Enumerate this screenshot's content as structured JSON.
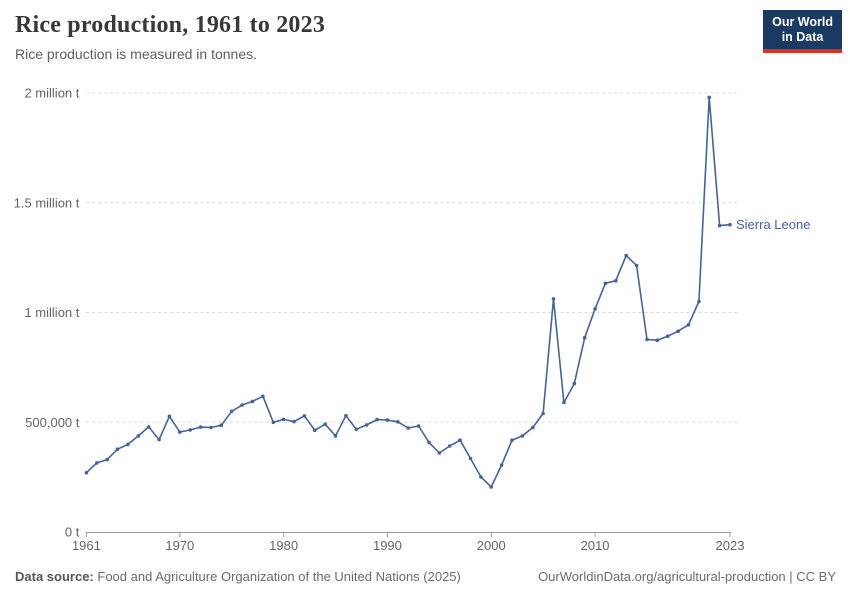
{
  "header": {
    "title": "Rice production, 1961 to 2023",
    "subtitle": "Rice production is measured in tonnes.",
    "logo_line1": "Our World",
    "logo_line2": "in Data",
    "logo_bg_color": "#1a3a63",
    "logo_accent_color": "#dc2f1f"
  },
  "footer": {
    "source_label": "Data source:",
    "source_text": "Food and Agriculture Organization of the United Nations (2025)",
    "credit": "OurWorldinData.org/agricultural-production | CC BY"
  },
  "chart_data": {
    "type": "line",
    "title": "Rice production, 1961 to 2023",
    "subtitle": "Rice production is measured in tonnes.",
    "unit": "tonnes",
    "grid": true,
    "legend_position": "end-of-line label",
    "line_color": "#44639e",
    "grid_color": "#d9d9d9",
    "axis_color": "#9a9a9a",
    "tick_label_color": "#646464",
    "xlim": [
      1961,
      2023
    ],
    "ylim": [
      0,
      2000000
    ],
    "xticks": [
      1961,
      1970,
      1980,
      1990,
      2000,
      2010,
      2023
    ],
    "yticks": [
      {
        "value": 0,
        "label": "0 t"
      },
      {
        "value": 500000,
        "label": "500,000 t"
      },
      {
        "value": 1000000,
        "label": "1 million t"
      },
      {
        "value": 1500000,
        "label": "1.5 million t"
      },
      {
        "value": 2000000,
        "label": "2 million t"
      }
    ],
    "series": [
      {
        "name": "Sierra Leone",
        "points": [
          [
            1961,
            270000
          ],
          [
            1962,
            315000
          ],
          [
            1963,
            330000
          ],
          [
            1964,
            377000
          ],
          [
            1965,
            399000
          ],
          [
            1966,
            438000
          ],
          [
            1967,
            479000
          ],
          [
            1968,
            421000
          ],
          [
            1969,
            527000
          ],
          [
            1970,
            455000
          ],
          [
            1971,
            465000
          ],
          [
            1972,
            478000
          ],
          [
            1973,
            476000
          ],
          [
            1974,
            486000
          ],
          [
            1975,
            550000
          ],
          [
            1976,
            578000
          ],
          [
            1977,
            595000
          ],
          [
            1978,
            618000
          ],
          [
            1979,
            500000
          ],
          [
            1980,
            513000
          ],
          [
            1981,
            503000
          ],
          [
            1982,
            529000
          ],
          [
            1983,
            464000
          ],
          [
            1984,
            491000
          ],
          [
            1985,
            438000
          ],
          [
            1986,
            530000
          ],
          [
            1987,
            468000
          ],
          [
            1988,
            488000
          ],
          [
            1989,
            512000
          ],
          [
            1990,
            510000
          ],
          [
            1991,
            502000
          ],
          [
            1992,
            474000
          ],
          [
            1993,
            483000
          ],
          [
            1994,
            408000
          ],
          [
            1995,
            360000
          ],
          [
            1996,
            392000
          ],
          [
            1997,
            418000
          ],
          [
            1998,
            335000
          ],
          [
            1999,
            251000
          ],
          [
            2000,
            205000
          ],
          [
            2001,
            305000
          ],
          [
            2002,
            418000
          ],
          [
            2003,
            438000
          ],
          [
            2004,
            476000
          ],
          [
            2005,
            540000
          ],
          [
            2006,
            1062000
          ],
          [
            2007,
            590000
          ],
          [
            2008,
            676000
          ],
          [
            2009,
            885000
          ],
          [
            2010,
            1017000
          ],
          [
            2011,
            1133000
          ],
          [
            2012,
            1145000
          ],
          [
            2013,
            1259000
          ],
          [
            2014,
            1214000
          ],
          [
            2015,
            877000
          ],
          [
            2016,
            874000
          ],
          [
            2017,
            892000
          ],
          [
            2018,
            915000
          ],
          [
            2019,
            944000
          ],
          [
            2020,
            1050000
          ],
          [
            2021,
            1980000
          ],
          [
            2022,
            1396000
          ],
          [
            2023,
            1400000
          ]
        ]
      }
    ]
  }
}
